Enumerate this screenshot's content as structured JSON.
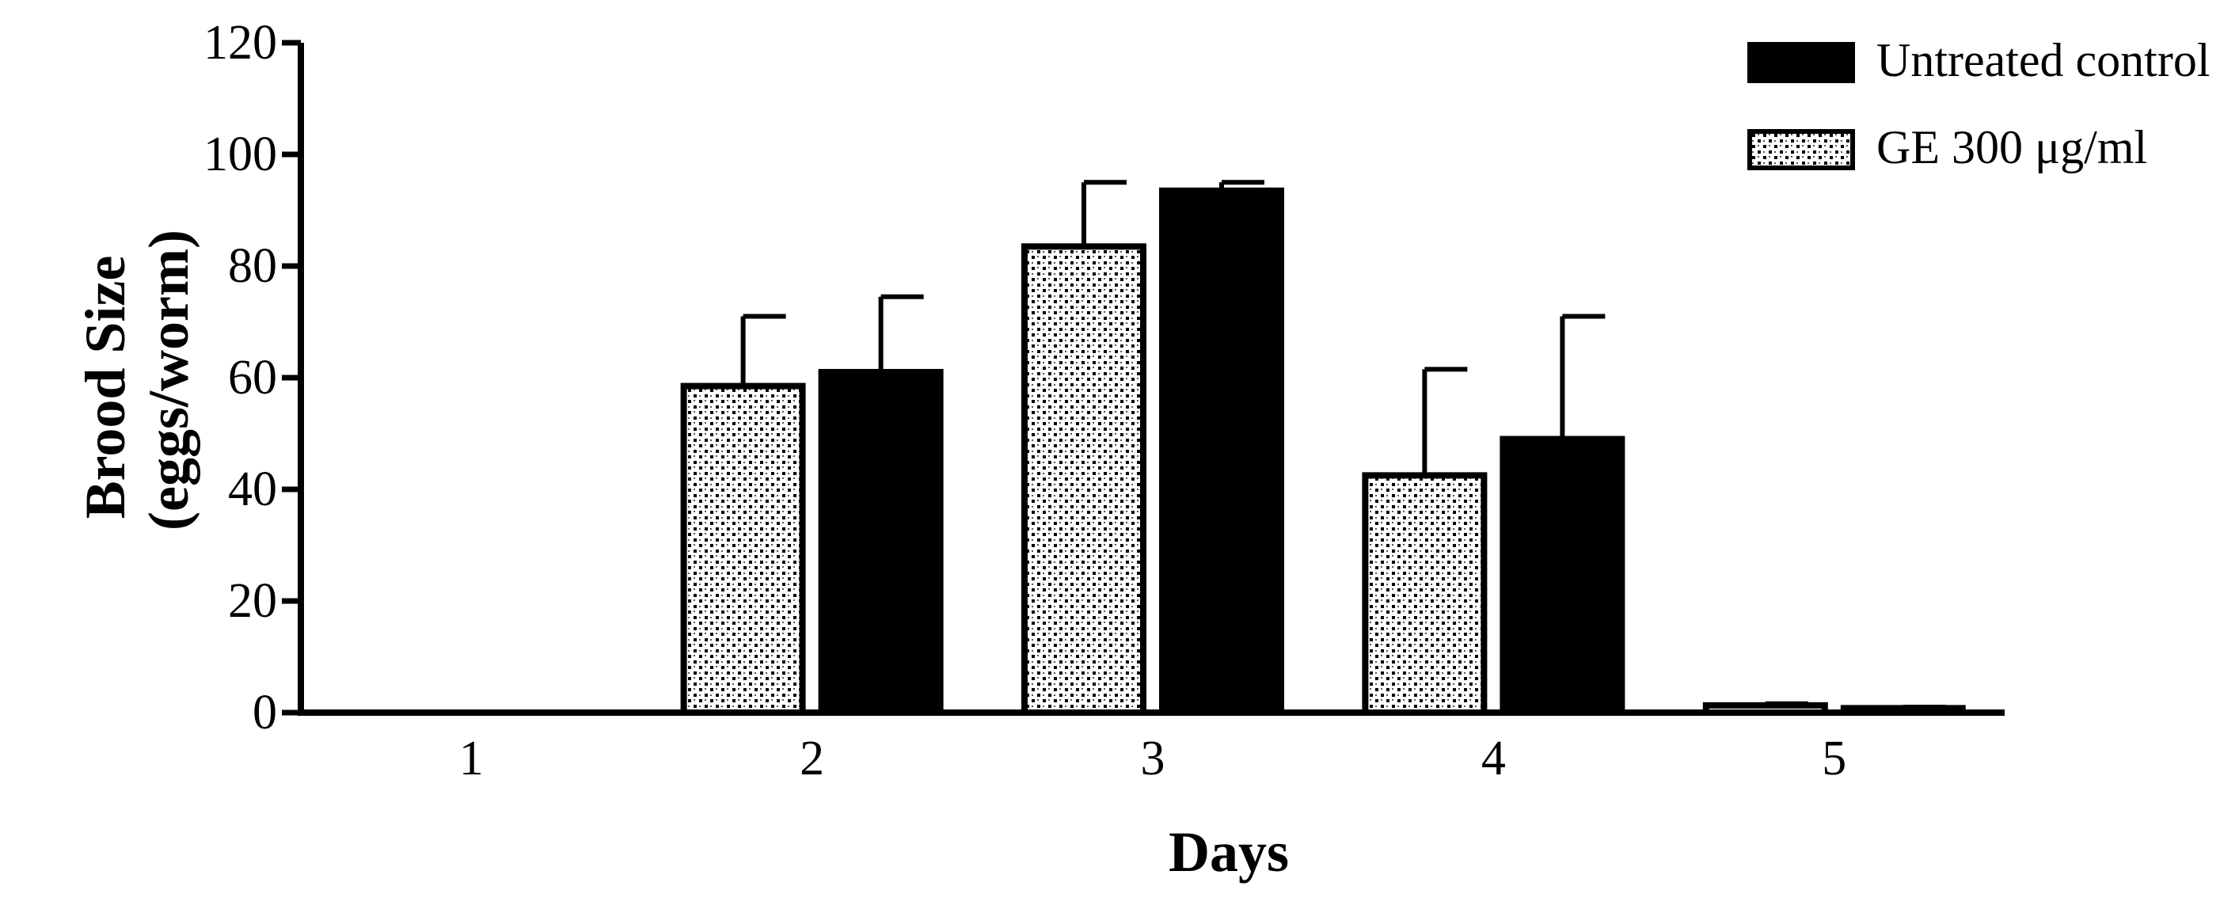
{
  "chart_data": {
    "type": "bar",
    "title": "",
    "xlabel": "Days",
    "ylabel_lines": [
      "Brood Size",
      "(eggs/worm)"
    ],
    "categories": [
      "1",
      "2",
      "3",
      "4",
      "5"
    ],
    "ylim": [
      0,
      120
    ],
    "yticks": [
      "0",
      "20",
      "40",
      "60",
      "80",
      "100",
      "120"
    ],
    "series": [
      {
        "name": "GE 300 μg/ml",
        "fill": "dotted",
        "values": [
          0,
          58.5,
          83.5,
          42.5,
          1.3
        ],
        "errors": [
          0,
          12.5,
          11.5,
          19,
          0.3
        ]
      },
      {
        "name": "Untreated control",
        "fill": "solid",
        "values": [
          0,
          61,
          93.5,
          49,
          0.8
        ],
        "errors": [
          0,
          13.5,
          1.5,
          22,
          0.2
        ]
      }
    ],
    "legend": {
      "position": "top-right",
      "entries": [
        "Untreated control",
        "GE 300 μg/ml"
      ]
    },
    "colors": {
      "solid": "#000000",
      "pattern_bg": "#ffffff",
      "pattern_dot": "#000000"
    },
    "grid": false
  }
}
